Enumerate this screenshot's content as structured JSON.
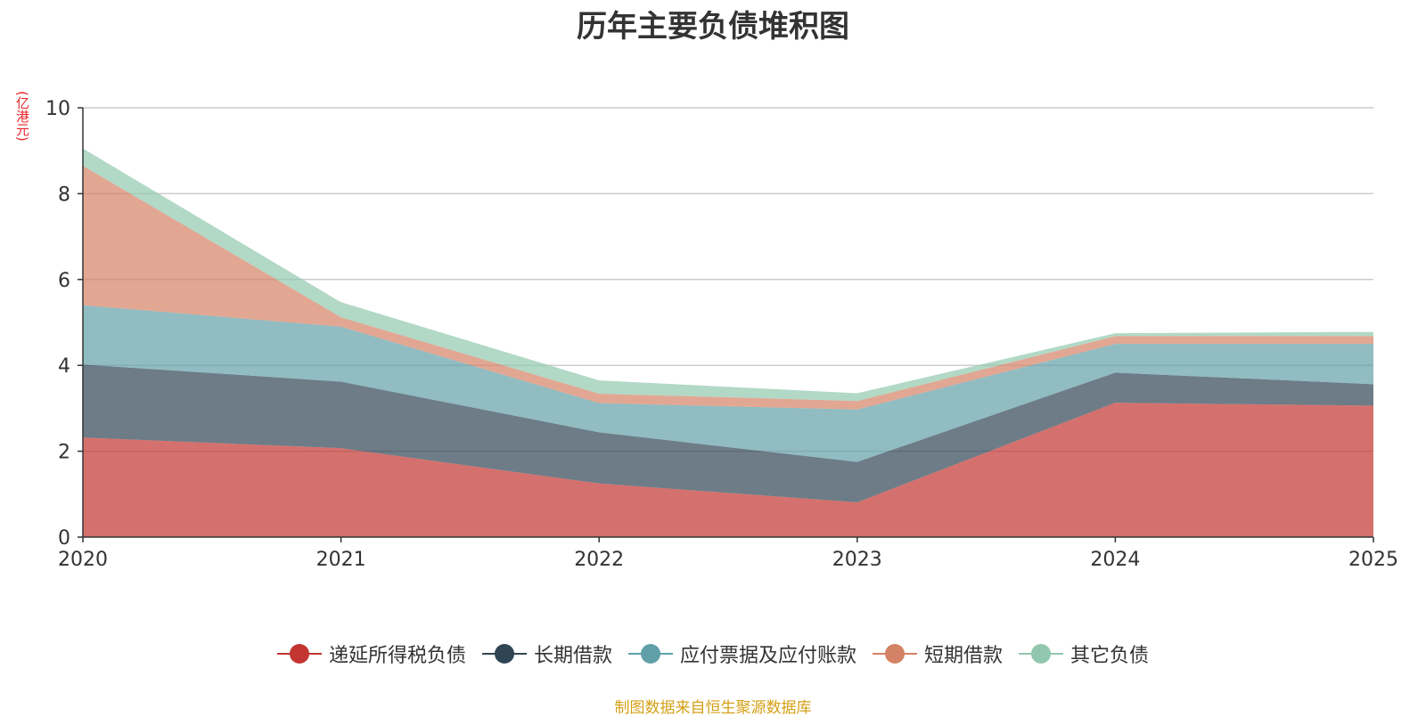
{
  "chart_data": {
    "type": "area",
    "stacked": true,
    "title": "历年主要负债堆积图",
    "unit_label": "(亿港元)",
    "x": [
      "2020",
      "2021",
      "2022",
      "2023",
      "2024",
      "2025"
    ],
    "ylim": [
      0,
      10
    ],
    "yticks": [
      0,
      2,
      4,
      6,
      8,
      10
    ],
    "grid": true,
    "legend_position": "bottom",
    "series": [
      {
        "name": "递延所得税负债",
        "color": "#c23531",
        "values": [
          2.32,
          2.07,
          1.25,
          0.81,
          3.13,
          3.06
        ]
      },
      {
        "name": "长期借款",
        "color": "#2f4554",
        "values": [
          1.7,
          1.55,
          1.19,
          0.94,
          0.7,
          0.5
        ]
      },
      {
        "name": "应付票据及应付账款",
        "color": "#61a0a8",
        "values": [
          1.38,
          1.28,
          0.68,
          1.22,
          0.67,
          0.94
        ]
      },
      {
        "name": "短期借款",
        "color": "#d48265",
        "values": [
          3.25,
          0.22,
          0.22,
          0.2,
          0.18,
          0.18
        ]
      },
      {
        "name": "其它负债",
        "color": "#91c7ae",
        "values": [
          0.4,
          0.35,
          0.31,
          0.18,
          0.07,
          0.1
        ]
      }
    ]
  },
  "source_text": "制图数据来自恒生聚源数据库"
}
